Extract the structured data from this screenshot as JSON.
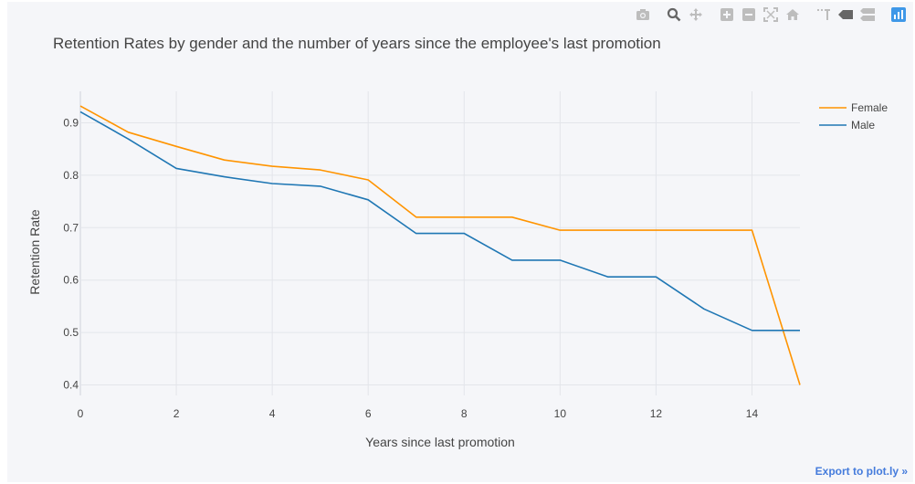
{
  "chart_data": {
    "type": "line",
    "title": "Retention Rates by gender and the number of years since the employee's last promotion",
    "xlabel": "Years since last promotion",
    "ylabel": "Retention Rate",
    "xlim": [
      0,
      15
    ],
    "ylim": [
      0.38,
      0.96
    ],
    "xticks": [
      "0",
      "2",
      "4",
      "6",
      "8",
      "10",
      "12",
      "14"
    ],
    "yticks": [
      "0.4",
      "0.5",
      "0.6",
      "0.7",
      "0.8",
      "0.9"
    ],
    "grid": true,
    "legend_position": "top-right",
    "series": [
      {
        "name": "Female",
        "color": "#ff9400",
        "x": [
          0,
          1,
          2,
          3,
          4,
          5,
          6,
          7,
          8,
          9,
          10,
          11,
          12,
          13,
          14,
          15
        ],
        "y": [
          0.932,
          0.882,
          0.855,
          0.829,
          0.817,
          0.81,
          0.791,
          0.72,
          0.72,
          0.72,
          0.695,
          0.695,
          0.695,
          0.695,
          0.695,
          0.4
        ]
      },
      {
        "name": "Male",
        "color": "#1f77b4",
        "x": [
          0,
          1,
          2,
          3,
          4,
          5,
          6,
          7,
          8,
          9,
          10,
          11,
          12,
          13,
          14,
          15
        ],
        "y": [
          0.921,
          0.869,
          0.813,
          0.797,
          0.784,
          0.779,
          0.753,
          0.689,
          0.689,
          0.638,
          0.638,
          0.606,
          0.606,
          0.545,
          0.504,
          0.504
        ]
      }
    ]
  },
  "modebar": {
    "icons": [
      "camera-icon",
      "zoom-icon",
      "pan-icon",
      "zoom-in-icon",
      "zoom-out-icon",
      "autoscale-icon",
      "reset-axes-icon",
      "spike-lines-icon",
      "hover-closest-icon",
      "hover-compare-icon",
      "plotly-logo-icon"
    ]
  },
  "export_link": "Export to plot.ly »"
}
